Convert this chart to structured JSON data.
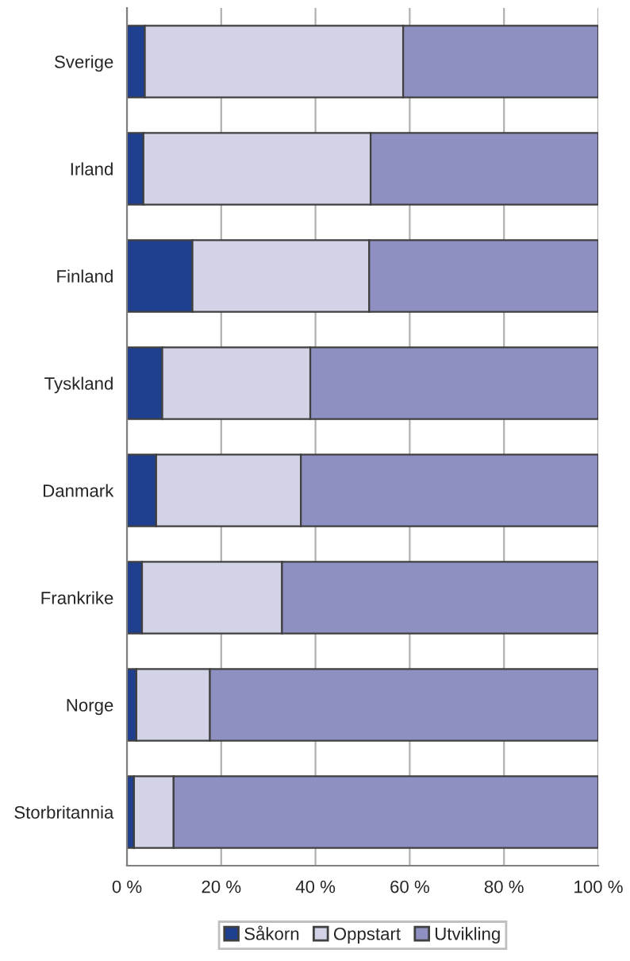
{
  "chart_data": {
    "type": "bar",
    "orientation": "horizontal",
    "stacked": true,
    "categories": [
      "Sverige",
      "Irland",
      "Finland",
      "Tyskland",
      "Danmark",
      "Frankrike",
      "Norge",
      "Storbritannia"
    ],
    "series": [
      {
        "name": "Såkorn",
        "color": "#1f3f8f",
        "values": [
          3.8,
          3.5,
          13.9,
          7.5,
          6.2,
          3.2,
          2.0,
          1.5
        ]
      },
      {
        "name": "Oppstart",
        "color": "#d3d3e8",
        "values": [
          54.8,
          48.2,
          37.5,
          31.4,
          30.7,
          29.7,
          15.6,
          8.4
        ]
      },
      {
        "name": "Utvikling",
        "color": "#8f90c2",
        "values": [
          41.4,
          48.3,
          48.6,
          61.1,
          63.1,
          67.1,
          82.4,
          90.1
        ]
      }
    ],
    "xlim": [
      0,
      100
    ],
    "xticks": [
      {
        "value": 0,
        "label": "0 %"
      },
      {
        "value": 20,
        "label": "20 %"
      },
      {
        "value": 40,
        "label": "40 %"
      },
      {
        "value": 60,
        "label": "60 %"
      },
      {
        "value": 80,
        "label": "80 %"
      },
      {
        "value": 100,
        "label": "100 %"
      }
    ],
    "grid": "x",
    "legend": "bottom"
  }
}
